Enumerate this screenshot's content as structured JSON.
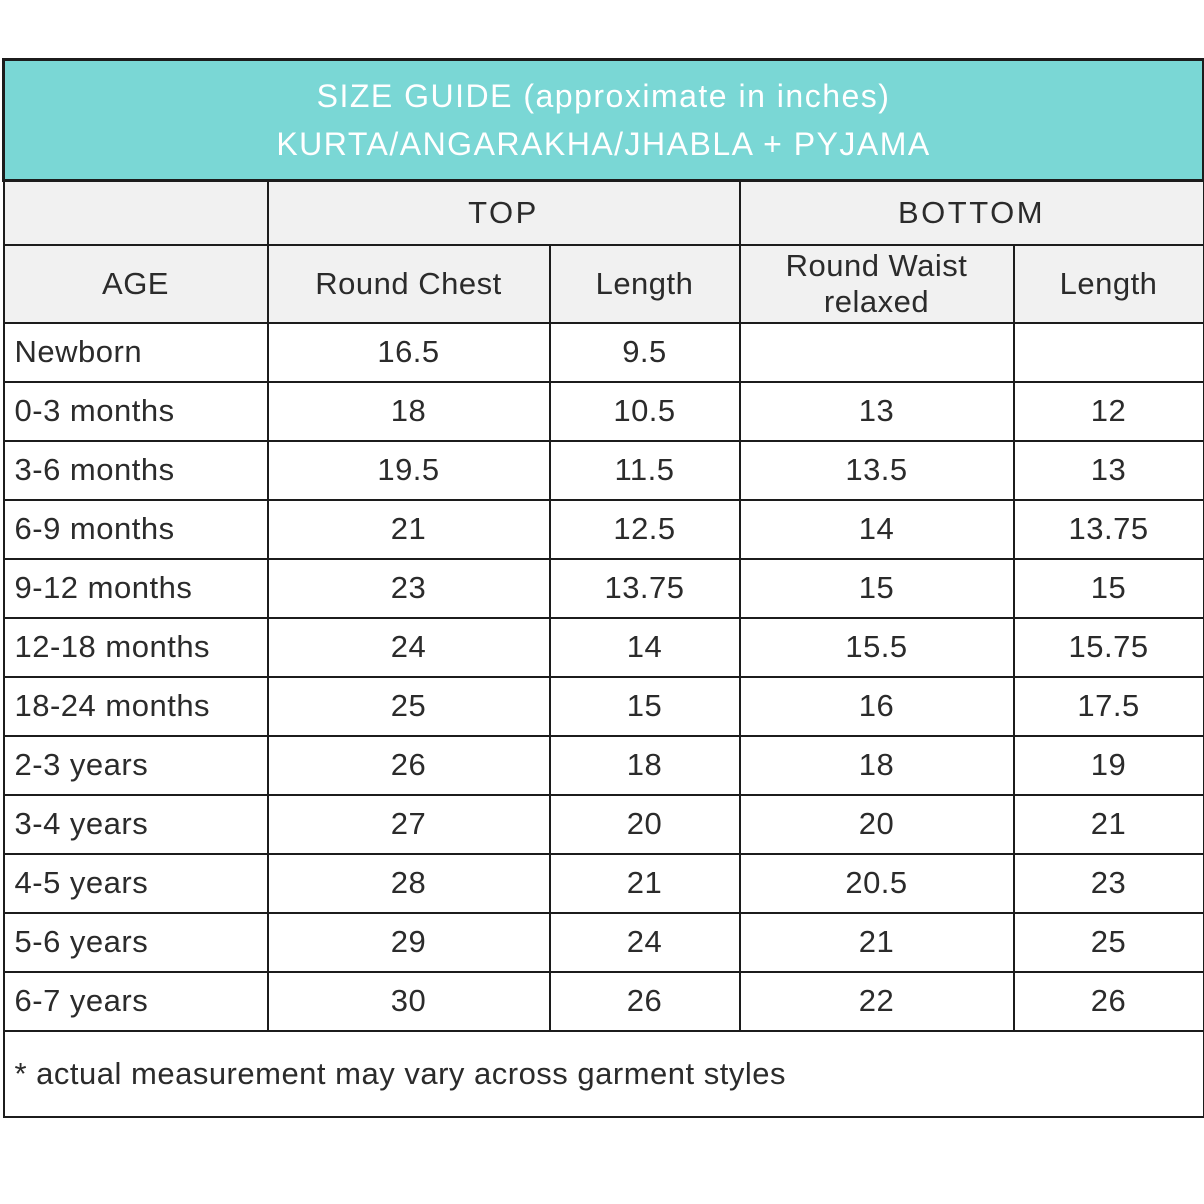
{
  "header": {
    "title_line1": "SIZE GUIDE (approximate in inches)",
    "title_line2": "KURTA/ANGARAKHA/JHABLA + PYJAMA"
  },
  "table": {
    "group_headers": {
      "age_spacer": "",
      "top": "TOP",
      "bottom": "BOTTOM"
    },
    "column_headers": {
      "age": "AGE",
      "top_round_chest": "Round Chest",
      "top_length": "Length",
      "bottom_round_waist": "Round Waist relaxed",
      "bottom_length": "Length"
    },
    "rows": [
      {
        "age": "Newborn",
        "top_round_chest": "16.5",
        "top_length": "9.5",
        "bottom_round_waist": "",
        "bottom_length": ""
      },
      {
        "age": "0-3 months",
        "top_round_chest": "18",
        "top_length": "10.5",
        "bottom_round_waist": "13",
        "bottom_length": "12"
      },
      {
        "age": "3-6 months",
        "top_round_chest": "19.5",
        "top_length": "11.5",
        "bottom_round_waist": "13.5",
        "bottom_length": "13"
      },
      {
        "age": "6-9 months",
        "top_round_chest": "21",
        "top_length": "12.5",
        "bottom_round_waist": "14",
        "bottom_length": "13.75"
      },
      {
        "age": "9-12 months",
        "top_round_chest": "23",
        "top_length": "13.75",
        "bottom_round_waist": "15",
        "bottom_length": "15"
      },
      {
        "age": "12-18 months",
        "top_round_chest": "24",
        "top_length": "14",
        "bottom_round_waist": "15.5",
        "bottom_length": "15.75"
      },
      {
        "age": "18-24 months",
        "top_round_chest": "25",
        "top_length": "15",
        "bottom_round_waist": "16",
        "bottom_length": "17.5"
      },
      {
        "age": "2-3 years",
        "top_round_chest": "26",
        "top_length": "18",
        "bottom_round_waist": "18",
        "bottom_length": "19"
      },
      {
        "age": "3-4 years",
        "top_round_chest": "27",
        "top_length": "20",
        "bottom_round_waist": "20",
        "bottom_length": "21"
      },
      {
        "age": "4-5 years",
        "top_round_chest": "28",
        "top_length": "21",
        "bottom_round_waist": "20.5",
        "bottom_length": "23"
      },
      {
        "age": "5-6 years",
        "top_round_chest": "29",
        "top_length": "24",
        "bottom_round_waist": "21",
        "bottom_length": "25"
      },
      {
        "age": "6-7 years",
        "top_round_chest": "30",
        "top_length": "26",
        "bottom_round_waist": "22",
        "bottom_length": "26"
      }
    ],
    "footnote": "* actual measurement may vary across garment styles"
  },
  "colors": {
    "accent_teal": "#7AD7D5",
    "header_gray": "#F1F1F1",
    "border": "#1C1C1C",
    "text": "#2B2B2B"
  }
}
